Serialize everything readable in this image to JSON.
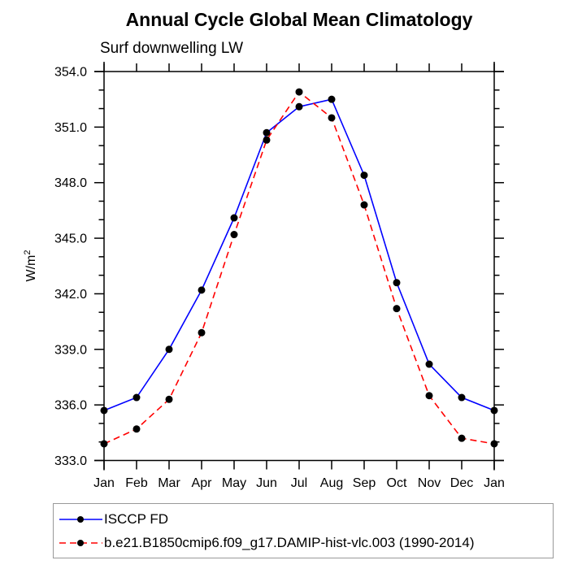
{
  "chart_data": {
    "type": "line",
    "title": "Annual Cycle Global Mean Climatology",
    "subtitle": "Surf downwelling LW",
    "ylabel": "W/m²",
    "ylabel_parts": {
      "base": "W/m",
      "exp": "2"
    },
    "x_categories": [
      "Jan",
      "Feb",
      "Mar",
      "Apr",
      "May",
      "Jun",
      "Jul",
      "Aug",
      "Sep",
      "Oct",
      "Nov",
      "Dec",
      "Jan"
    ],
    "ylim": [
      333.0,
      354.0
    ],
    "y_major_step": 3,
    "y_minor_step": 1,
    "y_tick_decimals": 1,
    "grid": false,
    "legend_position": "bottom-left",
    "axis_color": "#000000",
    "marker_color": "#000000",
    "background_color": "#ffffff",
    "legend_border_color": "#999999",
    "series": [
      {
        "name": "ISCCP FD",
        "color": "#0000ff",
        "style": "solid",
        "marker": "circle",
        "values": [
          335.7,
          336.4,
          339.0,
          342.2,
          346.1,
          350.7,
          352.1,
          352.5,
          348.4,
          342.6,
          338.2,
          336.4,
          335.7
        ]
      },
      {
        "name": "b.e21.B1850cmip6.f09_g17.DAMIP-hist-vlc.003 (1990-2014)",
        "color": "#ff0000",
        "style": "dashed",
        "marker": "circle",
        "values": [
          333.9,
          334.7,
          336.3,
          339.9,
          345.2,
          350.3,
          352.9,
          351.5,
          346.8,
          341.2,
          336.5,
          334.2,
          333.9
        ]
      }
    ]
  }
}
